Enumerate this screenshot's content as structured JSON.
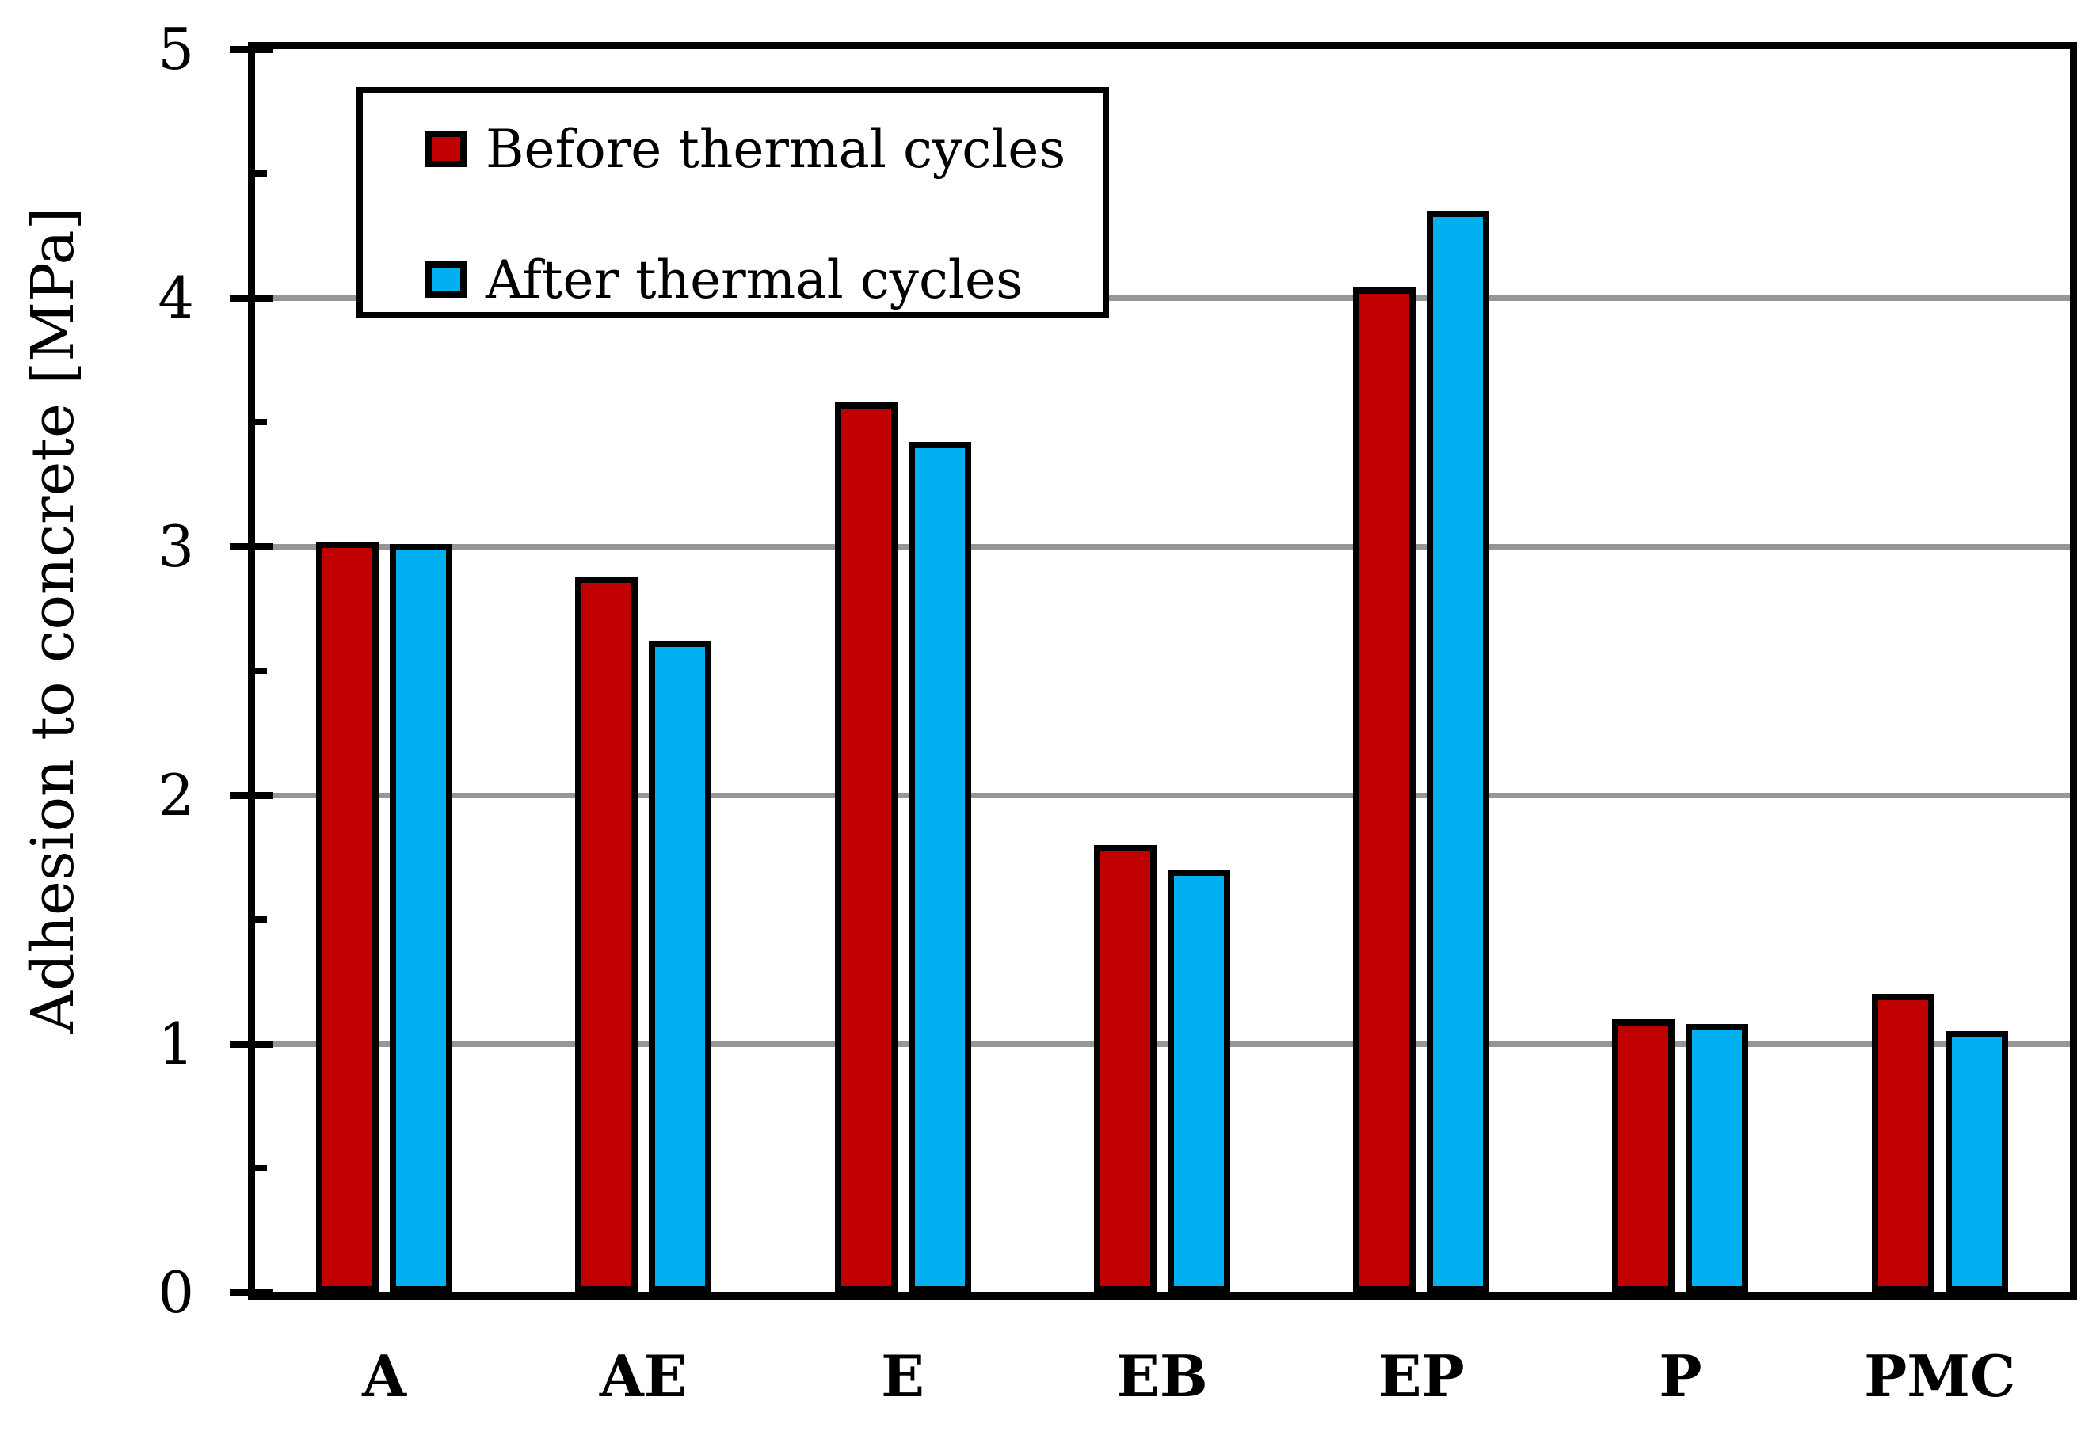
{
  "chart_data": {
    "type": "bar",
    "title": "",
    "categories": [
      "A",
      "AE",
      "E",
      "EB",
      "EP",
      "P",
      "PMC"
    ],
    "series": [
      {
        "name": "Before thermal cycles",
        "color": "#C00000",
        "values": [
          3.02,
          2.88,
          3.58,
          1.8,
          4.04,
          1.1,
          1.2
        ]
      },
      {
        "name": "After thermal cycles",
        "color": "#00B0F0",
        "values": [
          3.01,
          2.62,
          3.42,
          1.7,
          4.35,
          1.08,
          1.05
        ]
      }
    ],
    "xlabel": "",
    "ylabel": "Adhesion to concrete [MPa]",
    "ylim": [
      0,
      5
    ],
    "yticks": [
      "0",
      "1",
      "2",
      "3",
      "4",
      "5"
    ],
    "ytick_interval": 1,
    "ytick_minor_interval": 0.5,
    "grid": "horizontal-major",
    "legend_position": "top-left-inside",
    "colors": {
      "grid": "#969696",
      "axis": "#000000",
      "bar_border": "#000000",
      "background": "#FFFFFF"
    }
  }
}
